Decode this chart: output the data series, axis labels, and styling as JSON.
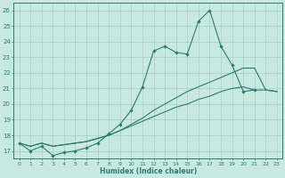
{
  "xlabel": "Humidex (Indice chaleur)",
  "x": [
    0,
    1,
    2,
    3,
    4,
    5,
    6,
    7,
    8,
    9,
    10,
    11,
    12,
    13,
    14,
    15,
    16,
    17,
    18,
    19,
    20,
    21,
    22,
    23
  ],
  "jagged": [
    17.5,
    17.0,
    17.3,
    16.7,
    16.9,
    17.0,
    17.2,
    17.5,
    18.1,
    18.7,
    19.6,
    21.1,
    23.4,
    23.7,
    23.3,
    23.2,
    25.3,
    26.0,
    23.7,
    22.5,
    20.8,
    20.9,
    null,
    null
  ],
  "mid": [
    17.5,
    17.3,
    17.5,
    17.3,
    17.4,
    17.5,
    17.6,
    17.8,
    18.0,
    18.3,
    18.7,
    19.1,
    19.6,
    20.0,
    20.4,
    20.8,
    21.1,
    21.4,
    21.7,
    22.0,
    22.3,
    22.3,
    20.9,
    20.8
  ],
  "low": [
    17.5,
    17.3,
    17.5,
    17.3,
    17.4,
    17.5,
    17.6,
    17.8,
    18.0,
    18.3,
    18.6,
    18.9,
    19.2,
    19.5,
    19.8,
    20.0,
    20.3,
    20.5,
    20.8,
    21.0,
    21.1,
    20.9,
    20.9,
    20.8
  ],
  "color": "#2a7d70",
  "bg_color": "#c8e8e2",
  "grid_color": "#a8cec8",
  "ylim": [
    16.5,
    26.5
  ],
  "xlim": [
    -0.5,
    23.5
  ],
  "yticks": [
    17,
    18,
    19,
    20,
    21,
    22,
    23,
    24,
    25,
    26
  ],
  "xticks": [
    0,
    1,
    2,
    3,
    4,
    5,
    6,
    7,
    8,
    9,
    10,
    11,
    12,
    13,
    14,
    15,
    16,
    17,
    18,
    19,
    20,
    21,
    22,
    23
  ]
}
